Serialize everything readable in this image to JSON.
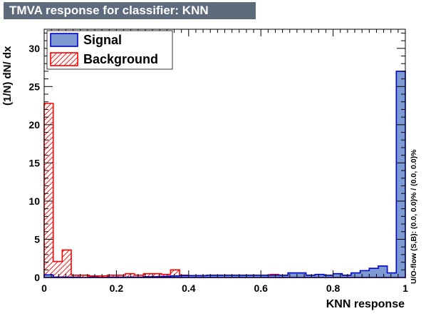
{
  "title": "TMVA response for classifier: KNN",
  "chart_data": {
    "type": "bar",
    "xlabel": "KNN response",
    "ylabel": "(1/N) dN/ dx",
    "overflow_label": "U/O-flow (S,B): (0.0, 0.0)% / (0.0, 0.0)%",
    "xlim": [
      0,
      1
    ],
    "ylim": [
      0,
      32.5
    ],
    "x_ticks": [
      0,
      0.2,
      0.4,
      0.6,
      0.8,
      1
    ],
    "x_tick_labels": [
      "0",
      "0.2",
      "0.4",
      "0.6",
      "0.8",
      "1"
    ],
    "y_ticks": [
      0,
      5,
      10,
      15,
      20,
      25,
      30
    ],
    "y_tick_labels": [
      "0",
      "5",
      "10",
      "15",
      "20",
      "25",
      "30"
    ],
    "bins": 40,
    "legend_position": "top-left",
    "series": [
      {
        "name": "Signal",
        "fill": "#7d99d1",
        "line": "#0000cc",
        "values": [
          0.35,
          0.05,
          0.05,
          0.05,
          0.0,
          0.05,
          0.0,
          0.05,
          0.05,
          0.05,
          0.05,
          0.1,
          0.1,
          0.15,
          0.2,
          0.25,
          0.25,
          0.25,
          0.3,
          0.3,
          0.3,
          0.3,
          0.3,
          0.3,
          0.3,
          0.3,
          0.3,
          0.6,
          0.6,
          0.3,
          0.4,
          0.3,
          0.5,
          0.3,
          0.6,
          0.9,
          1.2,
          1.5,
          0.6,
          27.0
        ]
      },
      {
        "name": "Background",
        "fill": "#ff0000",
        "line": "#ff0000",
        "values": [
          22.8,
          2.1,
          3.6,
          0.3,
          0.3,
          0.2,
          0.2,
          0.3,
          0.3,
          0.5,
          0.3,
          0.5,
          0.5,
          0.4,
          1.0,
          0.3,
          0.2,
          0.2,
          0.2,
          0.2,
          0.3,
          0.3,
          0.3,
          0.2,
          0.2,
          0.4,
          0.2,
          0.4,
          0.2,
          0.2,
          0.2,
          0.2,
          0.2,
          0.1,
          0.1,
          0.1,
          0.1,
          0.1,
          0.1,
          0.1
        ]
      }
    ]
  }
}
